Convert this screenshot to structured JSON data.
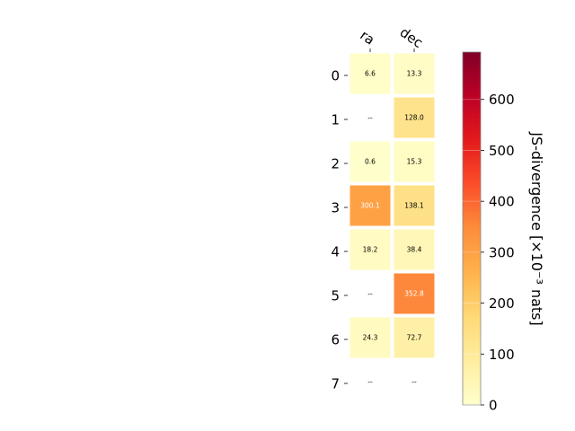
{
  "chart_data": {
    "type": "heatmap",
    "columns": [
      "ra",
      "dec"
    ],
    "rows": [
      "0",
      "1",
      "2",
      "3",
      "4",
      "5",
      "6",
      "7"
    ],
    "values": [
      [
        6.6,
        13.3
      ],
      [
        null,
        128.0
      ],
      [
        0.6,
        15.3
      ],
      [
        300.1,
        138.1
      ],
      [
        18.2,
        38.4
      ],
      [
        null,
        352.8
      ],
      [
        24.3,
        72.7
      ],
      [
        null,
        null
      ]
    ],
    "cell_labels": [
      [
        "6.6",
        "13.3"
      ],
      [
        "--",
        "128.0"
      ],
      [
        "0.6",
        "15.3"
      ],
      [
        "300.1",
        "138.1"
      ],
      [
        "18.2",
        "38.4"
      ],
      [
        "--",
        "352.8"
      ],
      [
        "24.3",
        "72.7"
      ],
      [
        "--",
        "--"
      ]
    ],
    "colorbar": {
      "label": "JS-divergence [×10⁻³ nats]",
      "range": [
        0,
        693
      ],
      "ticks": [
        0,
        100,
        200,
        300,
        400,
        500,
        600
      ],
      "colormap": "YlOrRd"
    },
    "colormap_stops": [
      "#ffffcc",
      "#ffeda0",
      "#fed976",
      "#feb24c",
      "#fd8d3c",
      "#fc4e2a",
      "#e31a1c",
      "#bd0026",
      "#800026"
    ]
  }
}
